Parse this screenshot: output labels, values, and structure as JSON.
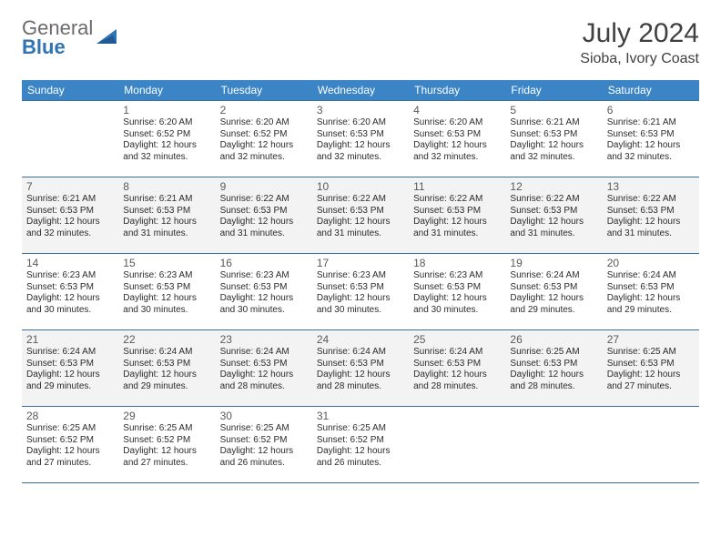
{
  "brand": {
    "line1": "General",
    "line2": "Blue"
  },
  "colors": {
    "header_bg": "#3b85c6",
    "header_text": "#ffffff",
    "rule": "#3b6fa0",
    "shaded_bg": "#f3f3f3",
    "text_dark": "#2b2b2b",
    "text_mid": "#5a5a5a",
    "brand_gray": "#6b6b6b",
    "brand_blue": "#2f74b5"
  },
  "title": "July 2024",
  "location": "Sioba, Ivory Coast",
  "weekdays": [
    "Sunday",
    "Monday",
    "Tuesday",
    "Wednesday",
    "Thursday",
    "Friday",
    "Saturday"
  ],
  "start_weekday": 1,
  "days": [
    {
      "n": 1,
      "sunrise": "6:20 AM",
      "sunset": "6:52 PM",
      "daylight": "12 hours and 32 minutes."
    },
    {
      "n": 2,
      "sunrise": "6:20 AM",
      "sunset": "6:52 PM",
      "daylight": "12 hours and 32 minutes."
    },
    {
      "n": 3,
      "sunrise": "6:20 AM",
      "sunset": "6:53 PM",
      "daylight": "12 hours and 32 minutes."
    },
    {
      "n": 4,
      "sunrise": "6:20 AM",
      "sunset": "6:53 PM",
      "daylight": "12 hours and 32 minutes."
    },
    {
      "n": 5,
      "sunrise": "6:21 AM",
      "sunset": "6:53 PM",
      "daylight": "12 hours and 32 minutes."
    },
    {
      "n": 6,
      "sunrise": "6:21 AM",
      "sunset": "6:53 PM",
      "daylight": "12 hours and 32 minutes."
    },
    {
      "n": 7,
      "sunrise": "6:21 AM",
      "sunset": "6:53 PM",
      "daylight": "12 hours and 32 minutes."
    },
    {
      "n": 8,
      "sunrise": "6:21 AM",
      "sunset": "6:53 PM",
      "daylight": "12 hours and 31 minutes."
    },
    {
      "n": 9,
      "sunrise": "6:22 AM",
      "sunset": "6:53 PM",
      "daylight": "12 hours and 31 minutes."
    },
    {
      "n": 10,
      "sunrise": "6:22 AM",
      "sunset": "6:53 PM",
      "daylight": "12 hours and 31 minutes."
    },
    {
      "n": 11,
      "sunrise": "6:22 AM",
      "sunset": "6:53 PM",
      "daylight": "12 hours and 31 minutes."
    },
    {
      "n": 12,
      "sunrise": "6:22 AM",
      "sunset": "6:53 PM",
      "daylight": "12 hours and 31 minutes."
    },
    {
      "n": 13,
      "sunrise": "6:22 AM",
      "sunset": "6:53 PM",
      "daylight": "12 hours and 31 minutes."
    },
    {
      "n": 14,
      "sunrise": "6:23 AM",
      "sunset": "6:53 PM",
      "daylight": "12 hours and 30 minutes."
    },
    {
      "n": 15,
      "sunrise": "6:23 AM",
      "sunset": "6:53 PM",
      "daylight": "12 hours and 30 minutes."
    },
    {
      "n": 16,
      "sunrise": "6:23 AM",
      "sunset": "6:53 PM",
      "daylight": "12 hours and 30 minutes."
    },
    {
      "n": 17,
      "sunrise": "6:23 AM",
      "sunset": "6:53 PM",
      "daylight": "12 hours and 30 minutes."
    },
    {
      "n": 18,
      "sunrise": "6:23 AM",
      "sunset": "6:53 PM",
      "daylight": "12 hours and 30 minutes."
    },
    {
      "n": 19,
      "sunrise": "6:24 AM",
      "sunset": "6:53 PM",
      "daylight": "12 hours and 29 minutes."
    },
    {
      "n": 20,
      "sunrise": "6:24 AM",
      "sunset": "6:53 PM",
      "daylight": "12 hours and 29 minutes."
    },
    {
      "n": 21,
      "sunrise": "6:24 AM",
      "sunset": "6:53 PM",
      "daylight": "12 hours and 29 minutes."
    },
    {
      "n": 22,
      "sunrise": "6:24 AM",
      "sunset": "6:53 PM",
      "daylight": "12 hours and 29 minutes."
    },
    {
      "n": 23,
      "sunrise": "6:24 AM",
      "sunset": "6:53 PM",
      "daylight": "12 hours and 28 minutes."
    },
    {
      "n": 24,
      "sunrise": "6:24 AM",
      "sunset": "6:53 PM",
      "daylight": "12 hours and 28 minutes."
    },
    {
      "n": 25,
      "sunrise": "6:24 AM",
      "sunset": "6:53 PM",
      "daylight": "12 hours and 28 minutes."
    },
    {
      "n": 26,
      "sunrise": "6:25 AM",
      "sunset": "6:53 PM",
      "daylight": "12 hours and 28 minutes."
    },
    {
      "n": 27,
      "sunrise": "6:25 AM",
      "sunset": "6:53 PM",
      "daylight": "12 hours and 27 minutes."
    },
    {
      "n": 28,
      "sunrise": "6:25 AM",
      "sunset": "6:52 PM",
      "daylight": "12 hours and 27 minutes."
    },
    {
      "n": 29,
      "sunrise": "6:25 AM",
      "sunset": "6:52 PM",
      "daylight": "12 hours and 27 minutes."
    },
    {
      "n": 30,
      "sunrise": "6:25 AM",
      "sunset": "6:52 PM",
      "daylight": "12 hours and 26 minutes."
    },
    {
      "n": 31,
      "sunrise": "6:25 AM",
      "sunset": "6:52 PM",
      "daylight": "12 hours and 26 minutes."
    }
  ],
  "labels": {
    "sunrise": "Sunrise:",
    "sunset": "Sunset:",
    "daylight": "Daylight:"
  }
}
